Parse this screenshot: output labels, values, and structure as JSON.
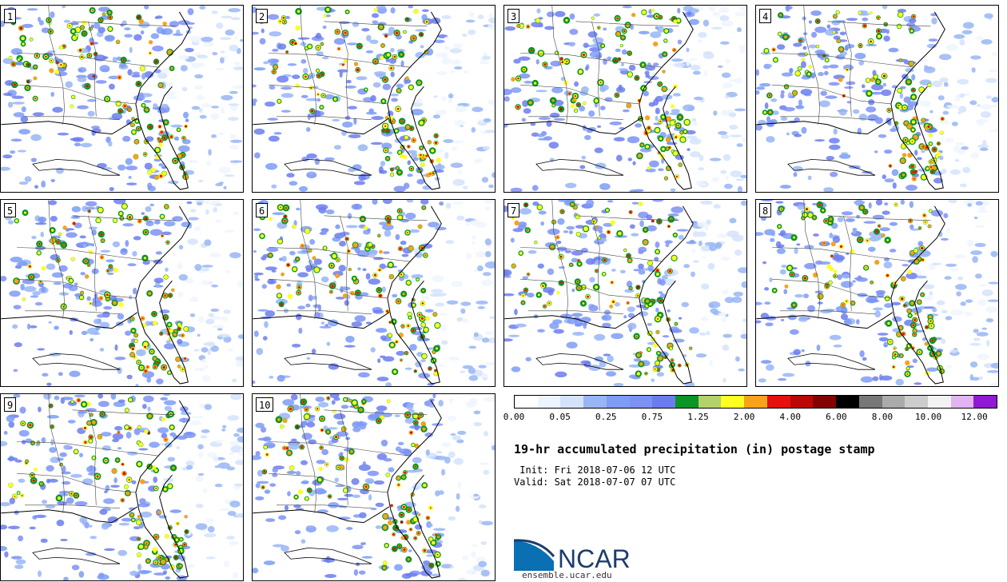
{
  "panels": [
    "1",
    "2",
    "3",
    "4",
    "5",
    "6",
    "7",
    "8",
    "9",
    "10"
  ],
  "colorbar": {
    "colors": [
      "#ffffff",
      "#eef4ff",
      "#d4e3fb",
      "#98b6f6",
      "#7c9cf6",
      "#7b92f4",
      "#6b7cee",
      "#0a9524",
      "#b3d36a",
      "#ffff21",
      "#f8a21b",
      "#e6100f",
      "#bb0805",
      "#820301",
      "#000000",
      "#777777",
      "#aaaaaa",
      "#cccccc",
      "#f2f2f2",
      "#e2b3f1",
      "#9019d6"
    ],
    "ticks": [
      "0.00",
      "0.05",
      "0.25",
      "0.75",
      "1.25",
      "2.00",
      "4.00",
      "6.00",
      "8.00",
      "10.00",
      "12.00"
    ]
  },
  "title": "19-hr accumulated precipitation (in) postage stamp",
  "init": " Init: Fri 2018-07-06 12 UTC",
  "valid": "Valid: Sat 2018-07-07 07 UTC",
  "logo": {
    "text": "NCAR",
    "url": "ensemble.ucar.edu",
    "brand_color": "#0a6fb3",
    "dark_color": "#1c3d6e"
  }
}
